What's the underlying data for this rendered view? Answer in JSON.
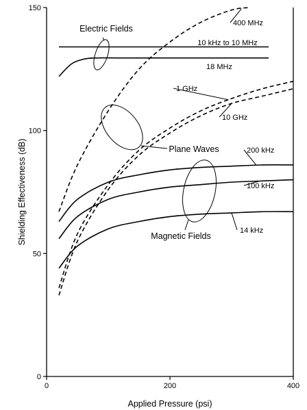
{
  "chart_data": {
    "type": "line",
    "title": "",
    "xlabel": "Applied Pressure (psi)",
    "ylabel": "Shielding Effectiveness (dB)",
    "xlim": [
      0,
      400
    ],
    "ylim": [
      0,
      150
    ],
    "xticks": [
      "0",
      "200",
      "400"
    ],
    "yticks": [
      "0",
      "50",
      "100",
      "150"
    ],
    "grid": false,
    "series": [
      {
        "name": "400 MHz",
        "style": "dashed",
        "x": [
          20,
          50,
          100,
          150,
          200,
          250,
          300,
          330
        ],
        "y": [
          67,
          86,
          108,
          125,
          136,
          144,
          149,
          150
        ]
      },
      {
        "name": "1 GHz",
        "style": "dashed",
        "x": [
          20,
          50,
          100,
          150,
          200,
          250,
          300,
          350,
          400
        ],
        "y": [
          36,
          58,
          78,
          92,
          101,
          108,
          113,
          117,
          120
        ]
      },
      {
        "name": "10 GHz",
        "style": "dashed",
        "x": [
          20,
          50,
          100,
          150,
          200,
          250,
          300,
          350,
          400
        ],
        "y": [
          33,
          55,
          76,
          90,
          99,
          106,
          111,
          114,
          117
        ]
      },
      {
        "name": "10 kHz to 10 MHz",
        "style": "solid",
        "x": [
          20,
          360
        ],
        "y": [
          134,
          134
        ]
      },
      {
        "name": "18 MHz",
        "style": "solid",
        "x": [
          20,
          40,
          60,
          80,
          120,
          200,
          360
        ],
        "y": [
          122,
          127,
          129,
          129.5,
          129.5,
          129.5,
          129.5
        ]
      },
      {
        "name": "200 kHz",
        "style": "solid",
        "x": [
          20,
          50,
          100,
          150,
          200,
          250,
          300,
          350,
          400
        ],
        "y": [
          63,
          72,
          79,
          82,
          84,
          85,
          85.5,
          86,
          86
        ]
      },
      {
        "name": "100 kHz",
        "style": "solid",
        "x": [
          20,
          50,
          100,
          150,
          200,
          250,
          300,
          350,
          400
        ],
        "y": [
          56,
          65,
          72,
          75,
          77,
          78,
          79,
          79.5,
          80
        ]
      },
      {
        "name": "14 kHz",
        "style": "solid",
        "x": [
          20,
          50,
          100,
          150,
          200,
          250,
          300,
          350,
          400
        ],
        "y": [
          44,
          53,
          60,
          63,
          65,
          66,
          66.5,
          67,
          67
        ]
      }
    ],
    "annotations": [
      "Electric Fields",
      "Plane Waves",
      "Magnetic Fields"
    ]
  }
}
